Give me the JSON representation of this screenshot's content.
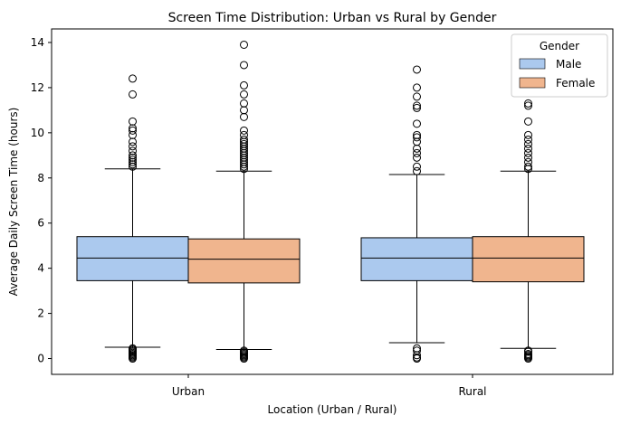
{
  "chart_data": {
    "type": "box",
    "title": "Screen Time Distribution: Urban vs Rural by Gender",
    "xlabel": "Location (Urban / Rural)",
    "ylabel": "Average Daily Screen Time (hours)",
    "ylim": [
      -0.7,
      14.6
    ],
    "yticks": [
      0,
      2,
      4,
      6,
      8,
      10,
      12,
      14
    ],
    "categories": [
      "Urban",
      "Rural"
    ],
    "legend": {
      "title": "Gender",
      "position": "top-right"
    },
    "grid": false,
    "series": [
      {
        "name": "Male",
        "color": "#abc9ee",
        "boxes": [
          {
            "category": "Urban",
            "whisker_low": 0.5,
            "q1": 3.45,
            "median": 4.45,
            "q3": 5.4,
            "whisker_high": 8.4,
            "outliers": [
              0.0,
              0.05,
              0.1,
              0.15,
              0.2,
              0.25,
              0.3,
              0.35,
              0.4,
              0.45,
              8.5,
              8.6,
              8.7,
              8.8,
              8.9,
              9.0,
              9.2,
              9.4,
              9.6,
              9.9,
              10.1,
              10.2,
              10.5,
              11.7,
              12.4
            ]
          },
          {
            "category": "Rural",
            "whisker_low": 0.7,
            "q1": 3.45,
            "median": 4.45,
            "q3": 5.35,
            "whisker_high": 8.15,
            "outliers": [
              0.0,
              0.05,
              0.15,
              0.35,
              0.45,
              8.3,
              8.5,
              8.9,
              9.1,
              9.3,
              9.6,
              9.8,
              9.9,
              10.4,
              11.1,
              11.2,
              11.6,
              12.0,
              12.8
            ]
          }
        ]
      },
      {
        "name": "Female",
        "color": "#f0b58e",
        "boxes": [
          {
            "category": "Urban",
            "whisker_low": 0.4,
            "q1": 3.35,
            "median": 4.4,
            "q3": 5.3,
            "whisker_high": 8.3,
            "outliers": [
              0.0,
              0.05,
              0.1,
              0.15,
              0.2,
              0.25,
              0.3,
              0.35,
              8.4,
              8.5,
              8.6,
              8.7,
              8.8,
              8.9,
              9.0,
              9.1,
              9.2,
              9.3,
              9.4,
              9.5,
              9.6,
              9.7,
              9.9,
              10.1,
              10.7,
              11.0,
              11.3,
              11.7,
              12.1,
              13.0,
              13.9
            ]
          },
          {
            "category": "Rural",
            "whisker_low": 0.45,
            "q1": 3.4,
            "median": 4.45,
            "q3": 5.4,
            "whisker_high": 8.3,
            "outliers": [
              0.0,
              0.05,
              0.1,
              0.15,
              0.2,
              0.3,
              0.35,
              8.4,
              8.5,
              8.7,
              8.9,
              9.1,
              9.3,
              9.5,
              9.7,
              9.9,
              10.5,
              11.2,
              11.3
            ]
          }
        ]
      }
    ]
  }
}
